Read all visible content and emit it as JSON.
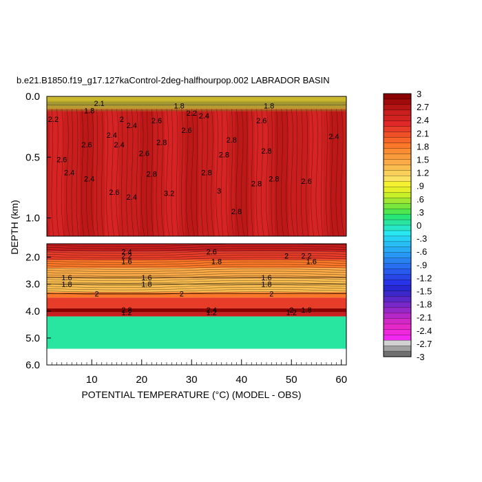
{
  "chart_data": {
    "type": "heatmap",
    "title": "b.e21.B1850.f19_g17.127kaControl-2deg-halfhourpop.002 LABRADOR BASIN",
    "xlabel": "POTENTIAL TEMPERATURE (°C) (MODEL - OBS)",
    "ylabel": "DEPTH (km)",
    "xlim": [
      1,
      61
    ],
    "xticks": [
      "10",
      "20",
      "30",
      "40",
      "50",
      "60"
    ],
    "xtick_values": [
      10,
      20,
      30,
      40,
      50,
      60
    ],
    "upper_panel": {
      "ylim": [
        0.0,
        1.15
      ],
      "yticks": [
        "0.0",
        "0.5",
        "1.0"
      ],
      "ytick_values": [
        0.0,
        0.5,
        1.0
      ],
      "contour_labels": [
        {
          "text": "2.2",
          "x": 2.3,
          "y": 0.21
        },
        {
          "text": "2.6",
          "x": 4.0,
          "y": 0.54
        },
        {
          "text": "2.4",
          "x": 5.5,
          "y": 0.65
        },
        {
          "text": "2.6",
          "x": 9.0,
          "y": 0.42
        },
        {
          "text": "2.4",
          "x": 9.5,
          "y": 0.7
        },
        {
          "text": "1.8",
          "x": 9.5,
          "y": 0.14
        },
        {
          "text": "2.1",
          "x": 11.5,
          "y": 0.08
        },
        {
          "text": "2.4",
          "x": 14.0,
          "y": 0.34
        },
        {
          "text": "2.4",
          "x": 15.5,
          "y": 0.42
        },
        {
          "text": "2.6",
          "x": 14.5,
          "y": 0.81
        },
        {
          "text": "2",
          "x": 16.0,
          "y": 0.21
        },
        {
          "text": "2.4",
          "x": 18.0,
          "y": 0.26
        },
        {
          "text": "2.4",
          "x": 18.0,
          "y": 0.85
        },
        {
          "text": "2.6",
          "x": 20.5,
          "y": 0.49
        },
        {
          "text": "2.6",
          "x": 23.0,
          "y": 0.22
        },
        {
          "text": "2.8",
          "x": 22.0,
          "y": 0.66
        },
        {
          "text": "2.8",
          "x": 24.0,
          "y": 0.4
        },
        {
          "text": "3.2",
          "x": 25.5,
          "y": 0.82
        },
        {
          "text": "1.8",
          "x": 27.5,
          "y": 0.1
        },
        {
          "text": "2.2",
          "x": 30.0,
          "y": 0.16
        },
        {
          "text": "2.4",
          "x": 32.5,
          "y": 0.18
        },
        {
          "text": "2.6",
          "x": 29.0,
          "y": 0.3
        },
        {
          "text": "2.8",
          "x": 33.0,
          "y": 0.65
        },
        {
          "text": "3",
          "x": 35.5,
          "y": 0.8
        },
        {
          "text": "2.8",
          "x": 36.5,
          "y": 0.5
        },
        {
          "text": "2.8",
          "x": 38.0,
          "y": 0.38
        },
        {
          "text": "2.8",
          "x": 39.0,
          "y": 0.97
        },
        {
          "text": "2.8",
          "x": 43.0,
          "y": 0.74
        },
        {
          "text": "2.8",
          "x": 45.0,
          "y": 0.47
        },
        {
          "text": "2.8",
          "x": 46.5,
          "y": 0.7
        },
        {
          "text": "2.6",
          "x": 44.0,
          "y": 0.22
        },
        {
          "text": "1.8",
          "x": 45.5,
          "y": 0.1
        },
        {
          "text": "2.6",
          "x": 53.0,
          "y": 0.72
        },
        {
          "text": "2.4",
          "x": 58.5,
          "y": 0.35
        }
      ]
    },
    "lower_panel": {
      "ylim": [
        1.5,
        6.0
      ],
      "yticks": [
        "2.0",
        "3.0",
        "4.0",
        "5.0",
        "6.0"
      ],
      "ytick_values": [
        2.0,
        3.0,
        4.0,
        5.0,
        6.0
      ],
      "bands": [
        {
          "from": 1.5,
          "to": 1.8,
          "value": 2.6
        },
        {
          "from": 1.8,
          "to": 2.1,
          "value": 2.2
        },
        {
          "from": 2.1,
          "to": 2.4,
          "value": 1.8
        },
        {
          "from": 2.4,
          "to": 2.8,
          "value": 1.5
        },
        {
          "from": 2.8,
          "to": 3.0,
          "value": 1.3
        },
        {
          "from": 3.0,
          "to": 3.3,
          "value": 1.4
        },
        {
          "from": 3.3,
          "to": 3.5,
          "value": 1.9
        },
        {
          "from": 3.5,
          "to": 3.9,
          "value": 2.2
        },
        {
          "from": 3.9,
          "to": 4.05,
          "value": 3.0
        },
        {
          "from": 4.05,
          "to": 4.2,
          "value": 2.6
        },
        {
          "from": 4.2,
          "to": 5.4,
          "value": 0.1
        }
      ],
      "contour_labels": [
        {
          "text": "2.4",
          "x": 17.0,
          "y": 1.8
        },
        {
          "text": "2.2",
          "x": 17.0,
          "y": 1.95
        },
        {
          "text": "1.6",
          "x": 17.0,
          "y": 2.15
        },
        {
          "text": "2.6",
          "x": 34.0,
          "y": 1.8
        },
        {
          "text": "1.8",
          "x": 35.0,
          "y": 2.15
        },
        {
          "text": "2",
          "x": 49.0,
          "y": 1.95
        },
        {
          "text": "2.2",
          "x": 53.0,
          "y": 1.95
        },
        {
          "text": "1.6",
          "x": 54.0,
          "y": 2.15
        },
        {
          "text": "1.6",
          "x": 5.0,
          "y": 2.75
        },
        {
          "text": "1.8",
          "x": 5.0,
          "y": 3.0
        },
        {
          "text": "2",
          "x": 11.0,
          "y": 3.35
        },
        {
          "text": "1.6",
          "x": 21.0,
          "y": 2.75
        },
        {
          "text": "1.8",
          "x": 21.0,
          "y": 3.0
        },
        {
          "text": "2",
          "x": 28.0,
          "y": 3.35
        },
        {
          "text": "1.6",
          "x": 45.0,
          "y": 2.75
        },
        {
          "text": "1.8",
          "x": 45.0,
          "y": 3.0
        },
        {
          "text": "2",
          "x": 46.0,
          "y": 3.35
        },
        {
          "text": "2.8",
          "x": 17.0,
          "y": 3.95
        },
        {
          "text": "1.2",
          "x": 17.0,
          "y": 4.05
        },
        {
          "text": "2.4",
          "x": 34.0,
          "y": 3.95
        },
        {
          "text": "1.2",
          "x": 34.0,
          "y": 4.05
        },
        {
          "text": "2",
          "x": 50.0,
          "y": 3.95
        },
        {
          "text": "1.8",
          "x": 53.0,
          "y": 3.95
        },
        {
          "text": "1.2",
          "x": 50.0,
          "y": 4.05
        }
      ]
    },
    "colorbar": {
      "labels": [
        "3",
        "2.7",
        "2.4",
        "2.1",
        "1.8",
        "1.5",
        "1.2",
        ".9",
        ".6",
        ".3",
        "0",
        "-.3",
        "-.6",
        "-.9",
        "-1.2",
        "-1.5",
        "-1.8",
        "-2.1",
        "-2.4",
        "-2.7",
        "-3"
      ],
      "colors": [
        "#8b0000",
        "#a00a0a",
        "#b41414",
        "#c81e1e",
        "#d22323",
        "#e12828",
        "#e63c28",
        "#f05028",
        "#f56428",
        "#fa7828",
        "#fa8c32",
        "#fa9c3c",
        "#faaa46",
        "#fabe50",
        "#fad05a",
        "#fae164",
        "#f5f032",
        "#e6f028",
        "#c8ee28",
        "#a0e632",
        "#78e63c",
        "#50e650",
        "#28e678",
        "#28e6a0",
        "#28e6c8",
        "#28e6f0",
        "#28d2f5",
        "#28bef5",
        "#28aaf5",
        "#2896f5",
        "#2882f0",
        "#286ef0",
        "#285af0",
        "#2846e6",
        "#2832e6",
        "#2828d2",
        "#3c28c8",
        "#5a28c8",
        "#7828c8",
        "#9628c8",
        "#b428c8",
        "#d228c8",
        "#e628c8",
        "#f028dc",
        "#f028f0",
        "#d2d2d2",
        "#a0a0a0",
        "#707070"
      ]
    }
  }
}
